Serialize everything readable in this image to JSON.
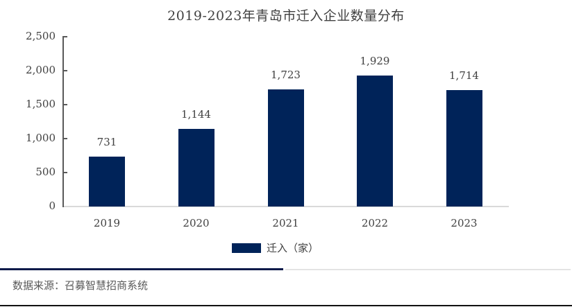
{
  "title": "2019-2023年青岛市迁入企业数量分布",
  "legend": {
    "label": "迁入（家）",
    "color": "#002359"
  },
  "source": "数据来源：召募智慧招商系统",
  "y_axis": {
    "ticks": [
      {
        "value": 0,
        "label": "0"
      },
      {
        "value": 500,
        "label": "500"
      },
      {
        "value": 1000,
        "label": "1,000"
      },
      {
        "value": 1500,
        "label": "1,500"
      },
      {
        "value": 2000,
        "label": "2,000"
      },
      {
        "value": 2500,
        "label": "2,500"
      }
    ]
  },
  "bars": [
    {
      "year": "2019",
      "value": 731,
      "label": "731"
    },
    {
      "year": "2020",
      "value": 1144,
      "label": "1,144"
    },
    {
      "year": "2021",
      "value": 1723,
      "label": "1,723"
    },
    {
      "year": "2022",
      "value": 1929,
      "label": "1,929"
    },
    {
      "year": "2023",
      "value": 1714,
      "label": "1,714"
    }
  ],
  "chart_data": {
    "type": "bar",
    "title": "2019-2023年青岛市迁入企业数量分布",
    "categories": [
      "2019",
      "2020",
      "2021",
      "2022",
      "2023"
    ],
    "series": [
      {
        "name": "迁入（家）",
        "values": [
          731,
          1144,
          1723,
          1929,
          1714
        ],
        "color": "#002359"
      }
    ],
    "xlabel": "",
    "ylabel": "",
    "ylim": [
      0,
      2500
    ],
    "yticks": [
      0,
      500,
      1000,
      1500,
      2000,
      2500
    ],
    "grid": false,
    "legend_position": "bottom",
    "data_labels": true,
    "source": "数据来源：召募智慧招商系统"
  }
}
